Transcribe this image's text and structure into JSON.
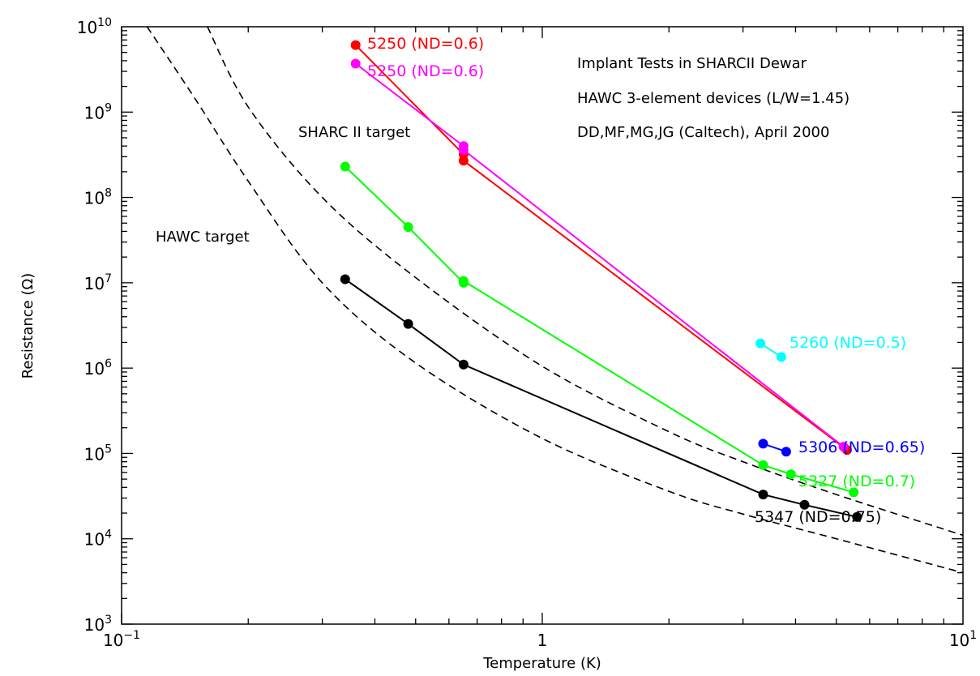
{
  "chart_data": {
    "type": "line",
    "x_scale": "log",
    "y_scale": "log",
    "xlim": [
      0.1,
      10
    ],
    "ylim": [
      1000,
      10000000000
    ],
    "grid": false,
    "xlabel": "Temperature (K)",
    "ylabel": "Resistance (Ω)",
    "x_ticks": [
      {
        "value": 0.1,
        "base": "10",
        "exp": "−1"
      },
      {
        "value": 1,
        "label": "1"
      },
      {
        "value": 10,
        "base": "10",
        "exp": "1"
      }
    ],
    "y_ticks": [
      {
        "value": 1000,
        "base": "10",
        "exp": "3"
      },
      {
        "value": 10000,
        "base": "10",
        "exp": "4"
      },
      {
        "value": 100000,
        "base": "10",
        "exp": "5"
      },
      {
        "value": 1000000,
        "base": "10",
        "exp": "6"
      },
      {
        "value": 10000000,
        "base": "10",
        "exp": "7"
      },
      {
        "value": 100000000,
        "base": "10",
        "exp": "8"
      },
      {
        "value": 1000000000,
        "base": "10",
        "exp": "9"
      },
      {
        "value": 10000000000,
        "base": "10",
        "exp": "10"
      }
    ],
    "annotations": [
      "Implant Tests in SHARCII Dewar",
      "HAWC 3-element devices (L/W=1.45)",
      "DD,MF,MG,JG (Caltech), April 2000"
    ],
    "target_curves": [
      {
        "name": "SHARC II target",
        "x": [
          0.16,
          0.2,
          0.3,
          0.5,
          1.0,
          2.0,
          3.0,
          5.0,
          10.0
        ],
        "y": [
          10000000000.0,
          1150000000.0,
          100000000.0,
          11500000.0,
          1050000.0,
          180000.0,
          80000.0,
          33000.0,
          11000.0
        ]
      },
      {
        "name": "HAWC target",
        "x": [
          0.115,
          0.15,
          0.2,
          0.3,
          0.5,
          1.0,
          2.0,
          3.0,
          5.0,
          10.0
        ],
        "y": [
          10000000000.0,
          1400000000.0,
          155000000.0,
          10000000.0,
          1150000.0,
          150000.0,
          36000.0,
          19500.0,
          10000.0,
          4000.0
        ]
      }
    ],
    "series": [
      {
        "name": "5250 (ND=0.6)",
        "color": "#ff0000",
        "x": [
          0.36,
          0.65,
          0.65,
          5.3
        ],
        "y": [
          6100000000.0,
          320000000.0,
          270000000.0,
          110000.0
        ]
      },
      {
        "name": "5250 (ND=0.6)",
        "color": "#ff00ff",
        "x": [
          0.36,
          0.65,
          0.65,
          5.2
        ],
        "y": [
          3700000000.0,
          400000000.0,
          360000000.0,
          120000.0
        ]
      },
      {
        "name": "5260 (ND=0.5)",
        "color": "#00ffff",
        "x": [
          3.3,
          3.7
        ],
        "y": [
          1950000.0,
          1350000.0
        ]
      },
      {
        "name": "5306 (ND=0.65)",
        "color": "#0000ff",
        "x": [
          3.35,
          3.8
        ],
        "y": [
          130000.0,
          105000.0
        ]
      },
      {
        "name": "5327 (ND=0.7)",
        "color": "#00ff00",
        "x": [
          0.34,
          0.48,
          0.65,
          0.65,
          3.35,
          3.9,
          5.5
        ],
        "y": [
          230000000.0,
          45000000.0,
          10000000.0,
          10500000.0,
          73000.0,
          57000.0,
          35000.0
        ]
      },
      {
        "name": "5347 (ND=0.75)",
        "color": "#000000",
        "x": [
          0.34,
          0.48,
          0.65,
          3.35,
          4.2,
          5.6
        ],
        "y": [
          11000000.0,
          3300000.0,
          1100000.0,
          33000.0,
          25000.0,
          18000.0
        ]
      }
    ]
  }
}
